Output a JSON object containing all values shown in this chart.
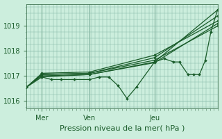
{
  "bg_color": "#cceedd",
  "grid_color": "#88bbaa",
  "line_color": "#1a5c2a",
  "marker_color": "#1a5c2a",
  "xlabel": "Pression niveau de la mer( hPa )",
  "xlabel_fontsize": 8,
  "ylim": [
    1015.7,
    1019.85
  ],
  "yticks": [
    1016,
    1017,
    1018,
    1019
  ],
  "xtick_labels": [
    "Mer",
    "Ven",
    "Jeu"
  ],
  "xtick_positions": [
    0.08,
    0.33,
    0.67
  ],
  "vline_color": "#447755",
  "series": [
    {
      "x": [
        0.0,
        0.08,
        0.33,
        0.67,
        1.0
      ],
      "y": [
        1016.55,
        1016.95,
        1017.05,
        1017.55,
        1019.62
      ]
    },
    {
      "x": [
        0.0,
        0.08,
        0.33,
        0.67,
        1.0
      ],
      "y": [
        1016.55,
        1017.05,
        1017.1,
        1017.72,
        1019.38
      ]
    },
    {
      "x": [
        0.0,
        0.08,
        0.33,
        0.67,
        1.0
      ],
      "y": [
        1016.55,
        1017.1,
        1017.15,
        1017.82,
        1019.18
      ]
    },
    {
      "x": [
        0.0,
        0.08,
        0.33,
        0.67,
        1.0
      ],
      "y": [
        1016.55,
        1017.05,
        1017.1,
        1017.62,
        1018.98
      ]
    },
    {
      "x": [
        0.0,
        0.08,
        0.33,
        0.67,
        1.0
      ],
      "y": [
        1016.55,
        1017.0,
        1017.05,
        1017.52,
        1019.08
      ]
    },
    {
      "x": [
        0.08,
        0.13,
        0.18,
        0.25,
        0.33,
        0.38,
        0.43,
        0.48,
        0.525,
        0.575,
        0.67,
        0.72,
        0.77,
        0.8,
        0.845,
        0.875,
        0.905,
        0.935,
        0.965,
        1.0
      ],
      "y": [
        1016.95,
        1016.85,
        1016.85,
        1016.85,
        1016.85,
        1016.95,
        1016.95,
        1016.6,
        1016.1,
        1016.55,
        1017.55,
        1017.68,
        1017.55,
        1017.55,
        1017.05,
        1017.05,
        1017.05,
        1017.6,
        1018.75,
        1019.62
      ]
    }
  ]
}
